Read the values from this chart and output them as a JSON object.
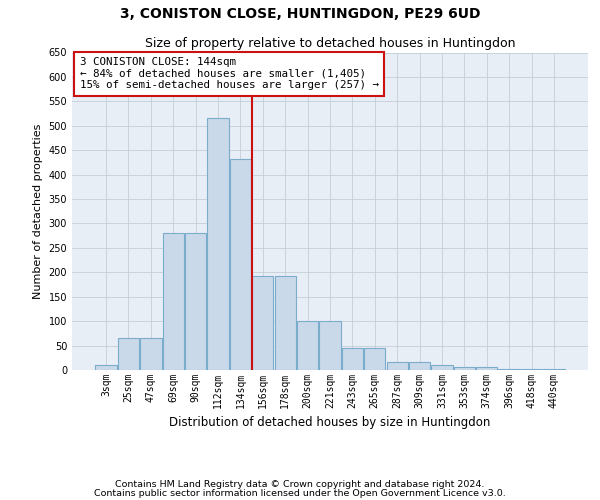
{
  "title": "3, CONISTON CLOSE, HUNTINGDON, PE29 6UD",
  "subtitle": "Size of property relative to detached houses in Huntingdon",
  "xlabel": "Distribution of detached houses by size in Huntingdon",
  "ylabel": "Number of detached properties",
  "categories": [
    "3sqm",
    "25sqm",
    "47sqm",
    "69sqm",
    "90sqm",
    "112sqm",
    "134sqm",
    "156sqm",
    "178sqm",
    "200sqm",
    "221sqm",
    "243sqm",
    "265sqm",
    "287sqm",
    "309sqm",
    "331sqm",
    "353sqm",
    "374sqm",
    "396sqm",
    "418sqm",
    "440sqm"
  ],
  "bar_heights": [
    10,
    65,
    65,
    280,
    280,
    515,
    432,
    192,
    192,
    100,
    100,
    46,
    46,
    16,
    16,
    11,
    6,
    6,
    3,
    3,
    3
  ],
  "bar_color": "#c9d9ea",
  "bar_edgecolor": "#7aaccb",
  "bg_color": "#e8eef6",
  "grid_color": "#c5cdd8",
  "vline_color": "#cc1111",
  "annotation_text": "3 CONISTON CLOSE: 144sqm\n← 84% of detached houses are smaller (1,405)\n15% of semi-detached houses are larger (257) →",
  "annotation_box_facecolor": "#ffffff",
  "annotation_box_edgecolor": "#cc1111",
  "ylim": [
    0,
    650
  ],
  "ytick_step": 50,
  "footnote1": "Contains HM Land Registry data © Crown copyright and database right 2024.",
  "footnote2": "Contains public sector information licensed under the Open Government Licence v3.0.",
  "title_fontsize": 10,
  "subtitle_fontsize": 9,
  "xlabel_fontsize": 8.5,
  "ylabel_fontsize": 8,
  "annotation_fontsize": 7.8,
  "footnote_fontsize": 6.8,
  "tick_fontsize": 7
}
